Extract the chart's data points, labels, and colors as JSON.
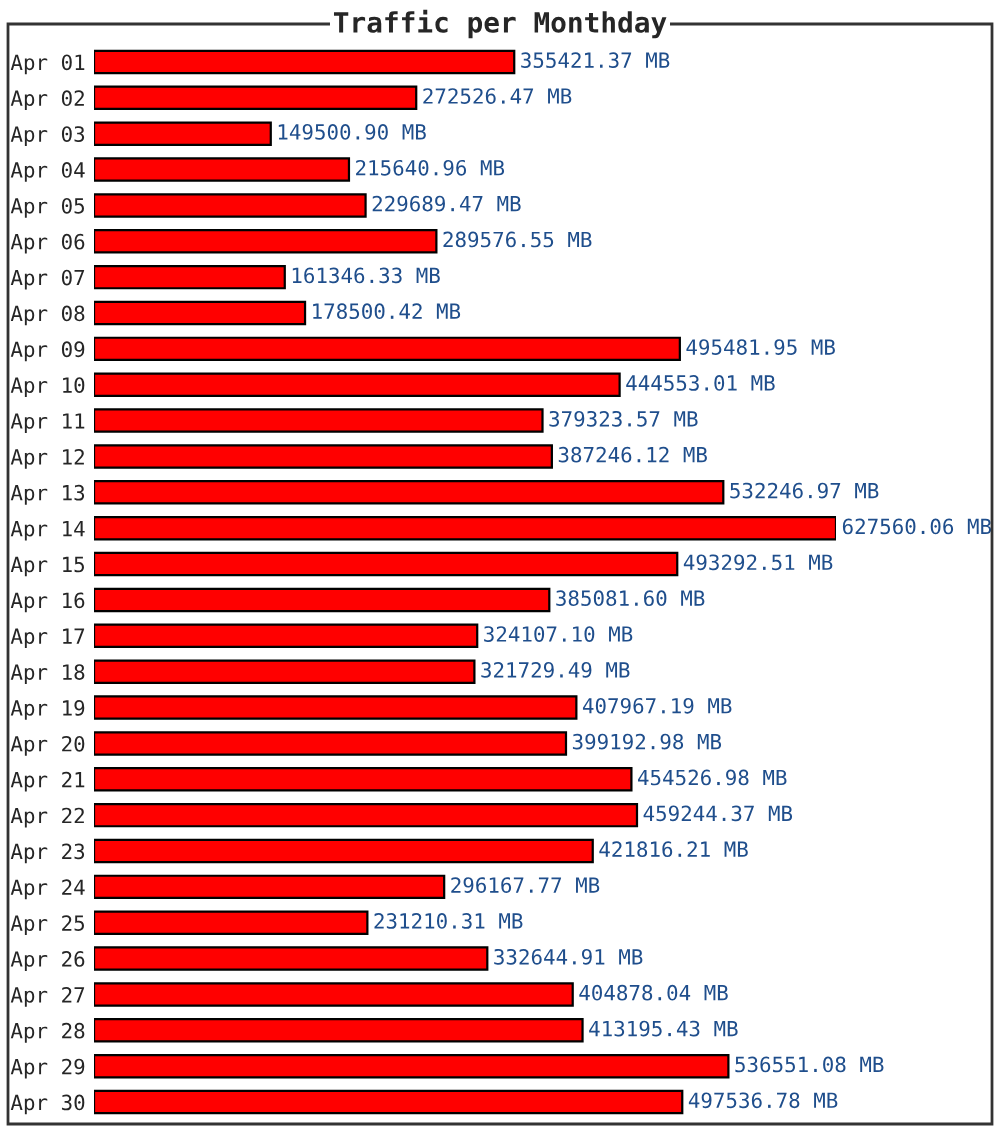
{
  "chart_data": {
    "type": "bar",
    "orientation": "horizontal",
    "title": "Traffic per Monthday",
    "categories": [
      "Apr 01",
      "Apr 02",
      "Apr 03",
      "Apr 04",
      "Apr 05",
      "Apr 06",
      "Apr 07",
      "Apr 08",
      "Apr 09",
      "Apr 10",
      "Apr 11",
      "Apr 12",
      "Apr 13",
      "Apr 14",
      "Apr 15",
      "Apr 16",
      "Apr 17",
      "Apr 18",
      "Apr 19",
      "Apr 20",
      "Apr 21",
      "Apr 22",
      "Apr 23",
      "Apr 24",
      "Apr 25",
      "Apr 26",
      "Apr 27",
      "Apr 28",
      "Apr 29",
      "Apr 30"
    ],
    "values": [
      355421.37,
      272526.47,
      149500.9,
      215640.96,
      229689.47,
      289576.55,
      161346.33,
      178500.42,
      495481.95,
      444553.01,
      379323.57,
      387246.12,
      532246.97,
      627560.06,
      493292.51,
      385081.6,
      324107.1,
      321729.49,
      407967.19,
      399192.98,
      454526.98,
      459244.37,
      421816.21,
      296167.77,
      231210.31,
      332644.91,
      404878.04,
      413195.43,
      536551.08,
      497536.78
    ],
    "value_labels": [
      "355421.37 MB",
      "272526.47 MB",
      "149500.90 MB",
      "215640.96 MB",
      "229689.47 MB",
      "289576.55 MB",
      "161346.33 MB",
      "178500.42 MB",
      "495481.95 MB",
      "444553.01 MB",
      "379323.57 MB",
      "387246.12 MB",
      "532246.97 MB",
      "627560.06 MB",
      "493292.51 MB",
      "385081.60 MB",
      "324107.10 MB",
      "321729.49 MB",
      "407967.19 MB",
      "399192.98 MB",
      "454526.98 MB",
      "459244.37 MB",
      "421816.21 MB",
      "296167.77 MB",
      "231210.31 MB",
      "332644.91 MB",
      "404878.04 MB",
      "413195.43 MB",
      "536551.08 MB",
      "497536.78 MB"
    ],
    "color": "#ff0000",
    "grid": false,
    "legend": false
  }
}
